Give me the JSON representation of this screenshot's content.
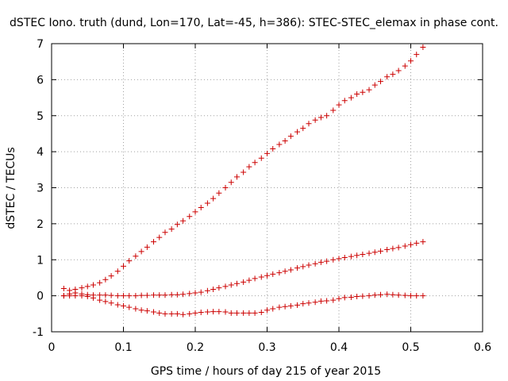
{
  "chart_data": {
    "type": "scatter",
    "title": "dSTEC Iono. truth (dund, Lon=170, Lat=-45, h=386): STEC-STEC_elemax in phase cont.",
    "xlabel": "GPS time / hours of day 215 of year 2015",
    "ylabel": "dSTEC  / TECUs",
    "xlim": [
      0,
      0.6
    ],
    "ylim": [
      -1,
      7
    ],
    "xticks": [
      "0",
      "0.1",
      "0.2",
      "0.3",
      "0.4",
      "0.5",
      "0.6"
    ],
    "yticks": [
      "-1",
      "0",
      "1",
      "2",
      "3",
      "4",
      "5",
      "6",
      "7"
    ],
    "grid": true,
    "marker_color": "#cc0000",
    "series": [
      {
        "x": [
          0.017,
          0.025,
          0.033,
          0.042,
          0.05,
          0.058,
          0.067,
          0.075,
          0.083,
          0.092,
          0.1,
          0.108,
          0.117,
          0.125,
          0.133,
          0.142,
          0.15,
          0.158,
          0.167,
          0.175,
          0.183,
          0.192,
          0.2,
          0.208,
          0.217,
          0.225,
          0.233,
          0.242,
          0.25,
          0.258,
          0.267,
          0.275,
          0.283,
          0.292,
          0.3,
          0.308,
          0.317,
          0.325,
          0.333,
          0.342,
          0.35,
          0.358,
          0.367,
          0.375,
          0.383,
          0.392,
          0.4,
          0.408,
          0.417,
          0.425,
          0.433,
          0.442,
          0.45,
          0.458,
          0.467,
          0.475,
          0.483,
          0.492,
          0.5,
          0.508,
          0.517
        ],
        "y": [
          0.2,
          0.15,
          0.18,
          0.22,
          0.26,
          0.3,
          0.36,
          0.45,
          0.55,
          0.68,
          0.82,
          0.97,
          1.1,
          1.23,
          1.35,
          1.5,
          1.62,
          1.76,
          1.85,
          1.98,
          2.08,
          2.2,
          2.33,
          2.45,
          2.57,
          2.7,
          2.85,
          3.0,
          3.15,
          3.3,
          3.43,
          3.58,
          3.7,
          3.82,
          3.95,
          4.08,
          4.2,
          4.3,
          4.43,
          4.55,
          4.65,
          4.78,
          4.88,
          4.95,
          5.0,
          5.15,
          5.3,
          5.42,
          5.5,
          5.6,
          5.65,
          5.72,
          5.85,
          5.95,
          6.08,
          6.15,
          6.25,
          6.38,
          6.52,
          6.7,
          6.9
        ]
      },
      {
        "x": [
          0.017,
          0.025,
          0.033,
          0.042,
          0.05,
          0.058,
          0.067,
          0.075,
          0.083,
          0.092,
          0.1,
          0.108,
          0.117,
          0.125,
          0.133,
          0.142,
          0.15,
          0.158,
          0.167,
          0.175,
          0.183,
          0.192,
          0.2,
          0.208,
          0.217,
          0.225,
          0.233,
          0.242,
          0.25,
          0.258,
          0.267,
          0.275,
          0.283,
          0.292,
          0.3,
          0.308,
          0.317,
          0.325,
          0.333,
          0.342,
          0.35,
          0.358,
          0.367,
          0.375,
          0.383,
          0.392,
          0.4,
          0.408,
          0.417,
          0.425,
          0.433,
          0.442,
          0.45,
          0.458,
          0.467,
          0.475,
          0.483,
          0.492,
          0.5,
          0.508,
          0.517
        ],
        "y": [
          0.0,
          0.05,
          0.08,
          0.05,
          0.03,
          0.02,
          0.02,
          0.02,
          0.01,
          0.0,
          0.0,
          0.0,
          0.0,
          0.01,
          0.01,
          0.02,
          0.02,
          0.02,
          0.03,
          0.03,
          0.04,
          0.06,
          0.08,
          0.1,
          0.14,
          0.18,
          0.22,
          0.26,
          0.3,
          0.34,
          0.38,
          0.43,
          0.48,
          0.52,
          0.56,
          0.6,
          0.64,
          0.68,
          0.72,
          0.77,
          0.81,
          0.85,
          0.89,
          0.93,
          0.96,
          1.0,
          1.03,
          1.06,
          1.09,
          1.12,
          1.15,
          1.18,
          1.21,
          1.24,
          1.28,
          1.31,
          1.34,
          1.38,
          1.42,
          1.46,
          1.5
        ]
      },
      {
        "x": [
          0.017,
          0.025,
          0.033,
          0.042,
          0.05,
          0.058,
          0.067,
          0.075,
          0.083,
          0.092,
          0.1,
          0.108,
          0.117,
          0.125,
          0.133,
          0.142,
          0.15,
          0.158,
          0.167,
          0.175,
          0.183,
          0.192,
          0.2,
          0.208,
          0.217,
          0.225,
          0.233,
          0.242,
          0.25,
          0.258,
          0.267,
          0.275,
          0.283,
          0.292,
          0.3,
          0.308,
          0.317,
          0.325,
          0.333,
          0.342,
          0.35,
          0.358,
          0.367,
          0.375,
          0.383,
          0.392,
          0.4,
          0.408,
          0.417,
          0.425,
          0.433,
          0.442,
          0.45,
          0.458,
          0.467,
          0.475,
          0.483,
          0.492,
          0.5,
          0.508,
          0.517
        ],
        "y": [
          0.0,
          0.0,
          0.0,
          0.0,
          -0.02,
          -0.06,
          -0.12,
          -0.16,
          -0.2,
          -0.25,
          -0.28,
          -0.32,
          -0.36,
          -0.4,
          -0.42,
          -0.45,
          -0.48,
          -0.5,
          -0.5,
          -0.5,
          -0.52,
          -0.5,
          -0.48,
          -0.46,
          -0.45,
          -0.44,
          -0.44,
          -0.45,
          -0.48,
          -0.48,
          -0.48,
          -0.48,
          -0.48,
          -0.46,
          -0.4,
          -0.36,
          -0.32,
          -0.3,
          -0.28,
          -0.26,
          -0.22,
          -0.2,
          -0.18,
          -0.15,
          -0.14,
          -0.12,
          -0.08,
          -0.05,
          -0.04,
          -0.02,
          -0.01,
          0.0,
          0.02,
          0.03,
          0.04,
          0.03,
          0.02,
          0.01,
          0.0,
          0.0,
          0.0
        ]
      }
    ]
  }
}
